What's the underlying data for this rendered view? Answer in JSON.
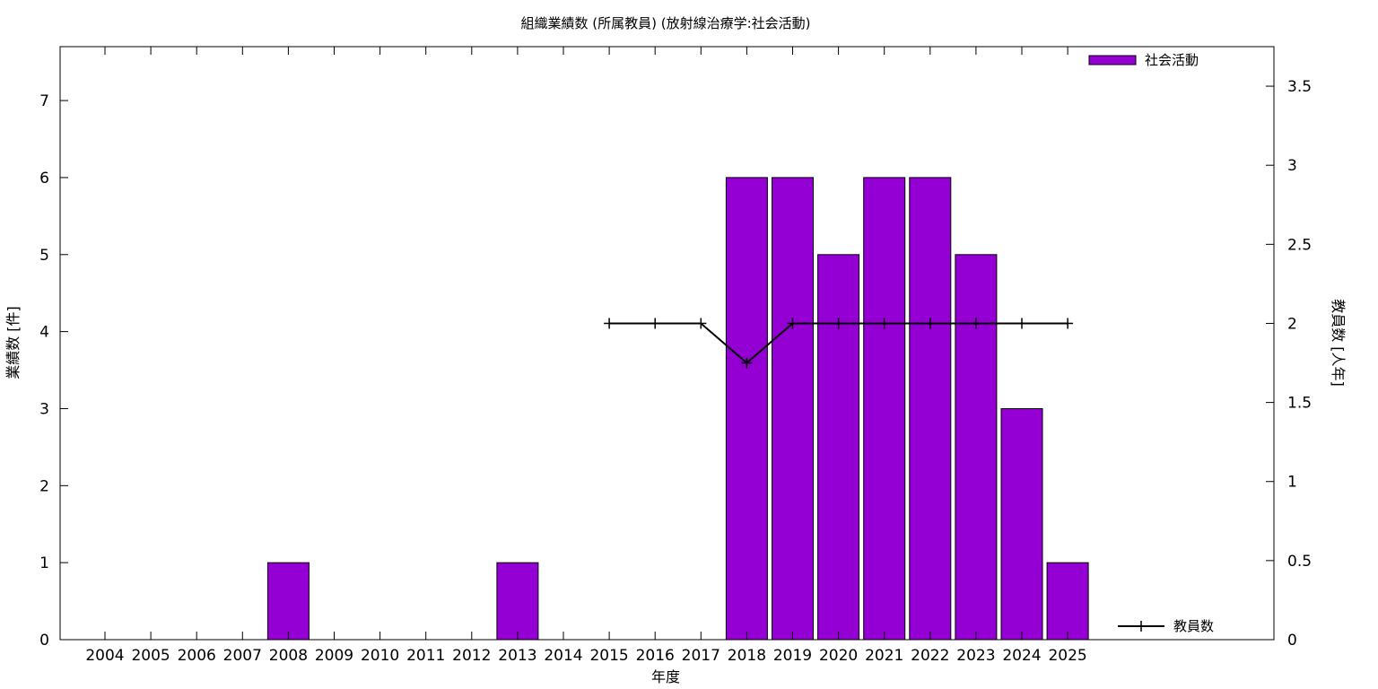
{
  "chart_data": {
    "type": "bar",
    "title": "組織業績数 (所属教員) (放射線治療学:社会活動)",
    "xlabel": "年度",
    "ylabel": "業績数 [件]",
    "y2label": "教員数 [人年]",
    "categories": [
      "2004",
      "2005",
      "2006",
      "2007",
      "2008",
      "2009",
      "2010",
      "2011",
      "2012",
      "2013",
      "2014",
      "2015",
      "2016",
      "2017",
      "2018",
      "2019",
      "2020",
      "2021",
      "2022",
      "2023",
      "2024",
      "2025"
    ],
    "series": [
      {
        "name": "社会活動",
        "type": "bar",
        "axis": "left",
        "color": "#9400d3",
        "values": [
          0,
          0,
          0,
          0,
          1,
          0,
          0,
          0,
          0,
          1,
          0,
          0,
          0,
          0,
          6,
          6,
          5,
          6,
          6,
          5,
          3,
          1
        ]
      },
      {
        "name": "教員数",
        "type": "line",
        "axis": "right",
        "color": "#000000",
        "values": [
          null,
          null,
          null,
          null,
          null,
          null,
          null,
          null,
          null,
          null,
          null,
          2,
          2,
          2,
          1.75,
          2,
          2,
          2,
          2,
          2,
          2,
          2
        ]
      }
    ],
    "ylim": [
      0,
      7.7
    ],
    "y2lim": [
      0,
      3.75
    ],
    "yticks": [
      "0",
      "1",
      "2",
      "3",
      "4",
      "5",
      "6",
      "7"
    ],
    "y2ticks": [
      "0",
      "0.5",
      "1",
      "1.5",
      "2",
      "2.5",
      "3",
      "3.5"
    ],
    "legend_placement": "top-right (bars), bottom-right (line)",
    "grid": false
  }
}
